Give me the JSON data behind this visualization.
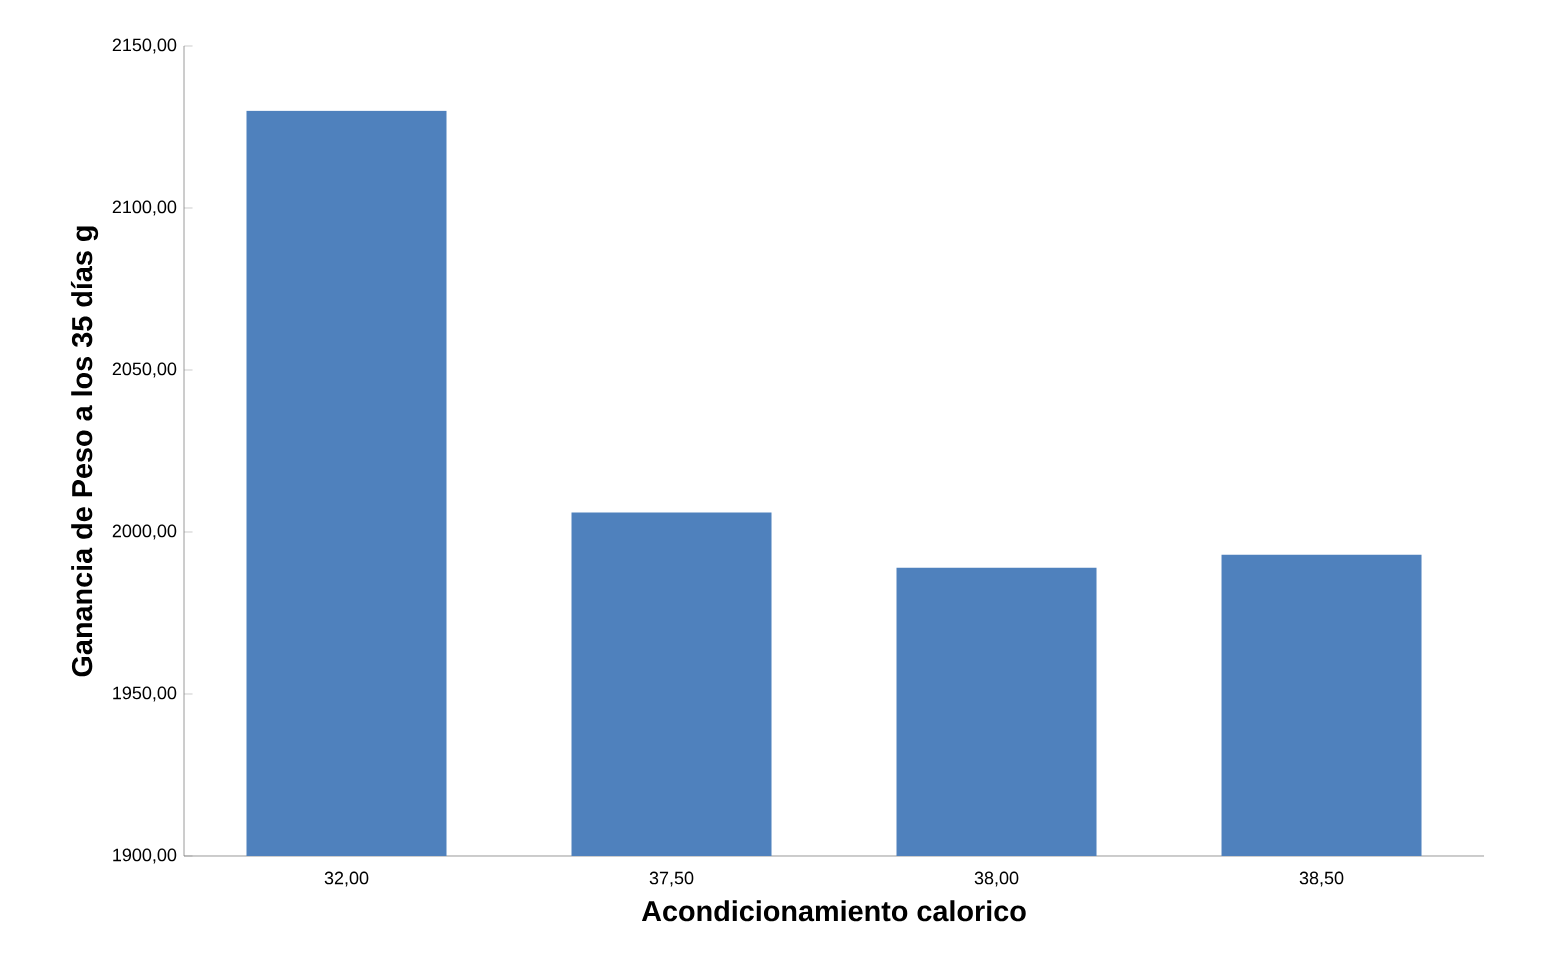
{
  "chart_data": {
    "type": "bar",
    "xlabel": "Acondicionamiento calorico",
    "ylabel": "Ganancia de Peso a los 35 días g",
    "categories": [
      "32,00",
      "37,50",
      "38,00",
      "38,50"
    ],
    "values": [
      2130,
      2006,
      1989,
      1993
    ],
    "color": "#4f81bd",
    "ylim": [
      1900,
      2150
    ],
    "yticks": [
      {
        "value": 1900,
        "label": "1900,00"
      },
      {
        "value": 1950,
        "label": "1950,00"
      },
      {
        "value": 2000,
        "label": "2000,00"
      },
      {
        "value": 2050,
        "label": "2050,00"
      },
      {
        "value": 2100,
        "label": "2100,00"
      },
      {
        "value": 2150,
        "label": "2150,00"
      }
    ],
    "grid": false
  }
}
